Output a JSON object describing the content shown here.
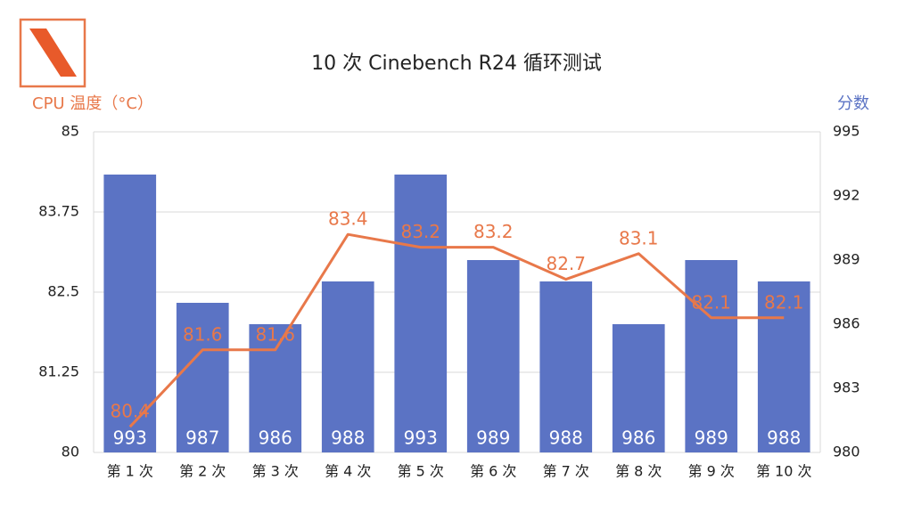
{
  "chart_data": {
    "type": "bar",
    "title": "10 次 Cinebench R24 循环测试",
    "ylabel": "CPU 温度（°C）",
    "y2label": "分数",
    "categories": [
      "第 1 次",
      "第 2 次",
      "第 3 次",
      "第 4 次",
      "第 5 次",
      "第 6 次",
      "第 7 次",
      "第 8 次",
      "第 9 次",
      "第 10 次"
    ],
    "series": [
      {
        "name": "分数",
        "type": "bar",
        "axis": "y2",
        "color": "#5b73c4",
        "values": [
          993,
          987,
          986,
          988,
          993,
          989,
          988,
          986,
          989,
          988
        ]
      },
      {
        "name": "CPU 温度（°C）",
        "type": "line",
        "axis": "y",
        "color": "#e8784a",
        "values": [
          80.4,
          81.6,
          81.6,
          83.4,
          83.2,
          83.2,
          82.7,
          83.1,
          82.1,
          82.1
        ]
      }
    ],
    "ylim": [
      80,
      85
    ],
    "yticks": [
      80,
      81.25,
      82.5,
      83.75,
      85
    ],
    "y2lim": [
      980,
      995
    ],
    "y2ticks": [
      980,
      983,
      986,
      989,
      992,
      995
    ],
    "grid": true
  }
}
